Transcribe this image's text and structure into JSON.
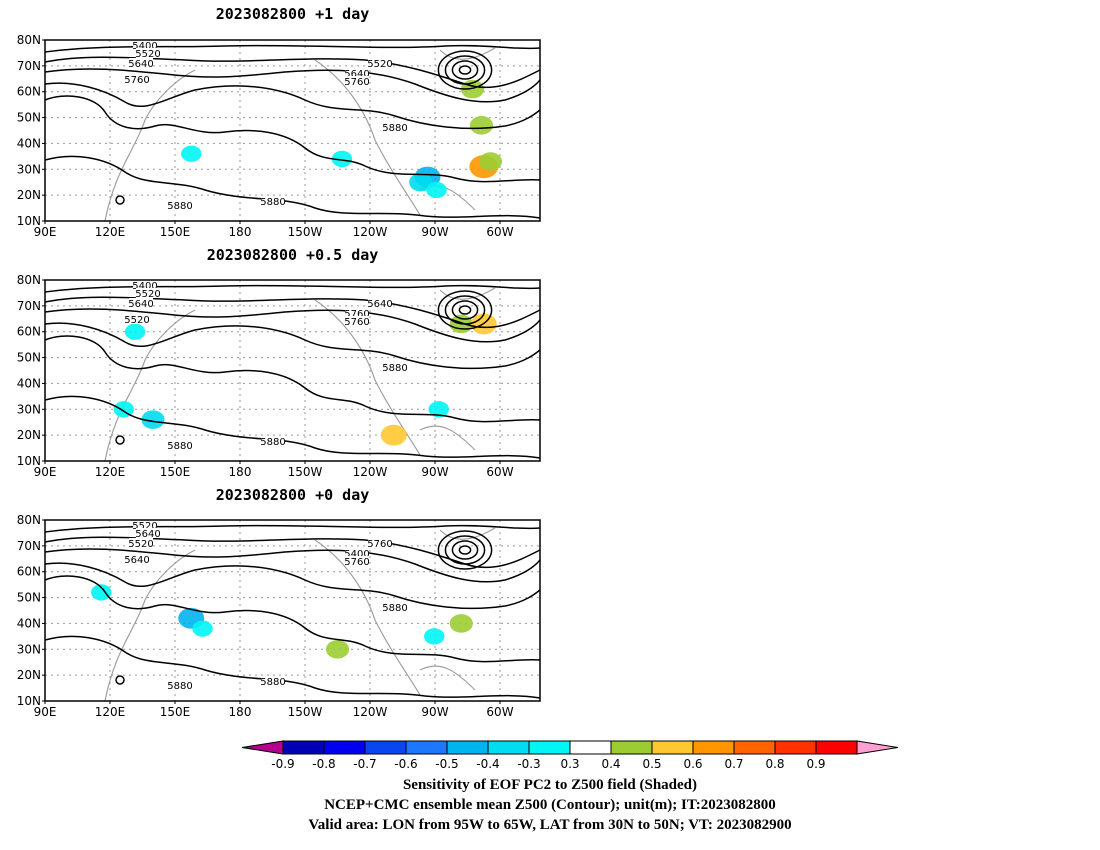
{
  "panels": [
    {
      "title": "2023082800  +1 day",
      "contour_labels": [
        "5400",
        "5520",
        "5640",
        "5760",
        "5520",
        "5640",
        "5760",
        "5880",
        "5880",
        "5880"
      ],
      "shaded": [
        {
          "lon": -100,
          "lat": 27,
          "value": -0.5
        },
        {
          "lon": -103,
          "lat": 25,
          "value": -0.4
        },
        {
          "lon": -96,
          "lat": 22,
          "value": -0.3
        },
        {
          "lon": -75,
          "lat": 31,
          "value": 0.6
        },
        {
          "lon": -72,
          "lat": 33,
          "value": 0.4
        },
        {
          "lon": -80,
          "lat": 61,
          "value": 0.4
        },
        {
          "lon": -76,
          "lat": 47,
          "value": 0.4
        },
        {
          "lon": 155,
          "lat": 36,
          "value": -0.3
        },
        {
          "lon": -138,
          "lat": 34,
          "value": -0.3
        }
      ]
    },
    {
      "title": "2023082800  +0.5 day",
      "contour_labels": [
        "5400",
        "5520",
        "5640",
        "5520",
        "5640",
        "5760",
        "5760",
        "5880",
        "5880",
        "5880"
      ],
      "shaded": [
        {
          "lon": 130,
          "lat": 60,
          "value": -0.3
        },
        {
          "lon": 138,
          "lat": 26,
          "value": -0.4
        },
        {
          "lon": 125,
          "lat": 30,
          "value": -0.3
        },
        {
          "lon": -85,
          "lat": 63,
          "value": 0.4
        },
        {
          "lon": -75,
          "lat": 63,
          "value": 0.5
        },
        {
          "lon": -95,
          "lat": 30,
          "value": -0.3
        },
        {
          "lon": -115,
          "lat": 20,
          "value": 0.5
        }
      ]
    },
    {
      "title": "2023082800  +0 day",
      "contour_labels": [
        "5520",
        "5640",
        "5520",
        "5640",
        "5760",
        "5400",
        "5760",
        "5880",
        "5880",
        "5880"
      ],
      "shaded": [
        {
          "lon": 155,
          "lat": 42,
          "value": -0.5
        },
        {
          "lon": 160,
          "lat": 38,
          "value": -0.3
        },
        {
          "lon": 115,
          "lat": 52,
          "value": -0.3
        },
        {
          "lon": -97,
          "lat": 35,
          "value": -0.3
        },
        {
          "lon": -140,
          "lat": 30,
          "value": 0.4
        },
        {
          "lon": -85,
          "lat": 40,
          "value": 0.4
        }
      ]
    }
  ],
  "map": {
    "lon_ticks": [
      "90E",
      "120E",
      "150E",
      "180",
      "150W",
      "120W",
      "90W",
      "60W"
    ],
    "lat_ticks": [
      "80N",
      "70N",
      "60N",
      "50N",
      "40N",
      "30N",
      "20N",
      "10N"
    ],
    "lon_range": [
      90,
      310
    ],
    "lat_range": [
      10,
      80
    ]
  },
  "colorbar": {
    "labels": [
      "-0.9",
      "-0.8",
      "-0.7",
      "-0.6",
      "-0.5",
      "-0.4",
      "-0.3",
      "0.3",
      "0.4",
      "0.5",
      "0.6",
      "0.7",
      "0.8",
      "0.9"
    ],
    "colors": [
      "#a0007a",
      "#0000b4",
      "#0000f0",
      "#0a46f0",
      "#1e78ff",
      "#00b4f0",
      "#00dcf0",
      "#00f5f5",
      "#ffffff",
      "#9bcd32",
      "#ffc832",
      "#ff9600",
      "#ff6400",
      "#ff3200",
      "#ff0000",
      "#ff96c8"
    ],
    "low_end_color": "#b4008c",
    "high_end_color": "#ffa0d2"
  },
  "footer": [
    "Sensitivity of EOF PC2 to Z500 field (Shaded)",
    "NCEP+CMC ensemble mean Z500 (Contour); unit(m); IT:2023082800",
    "Valid area: LON from 95W to 65W, LAT from 30N to 50N; VT: 2023082900"
  ]
}
